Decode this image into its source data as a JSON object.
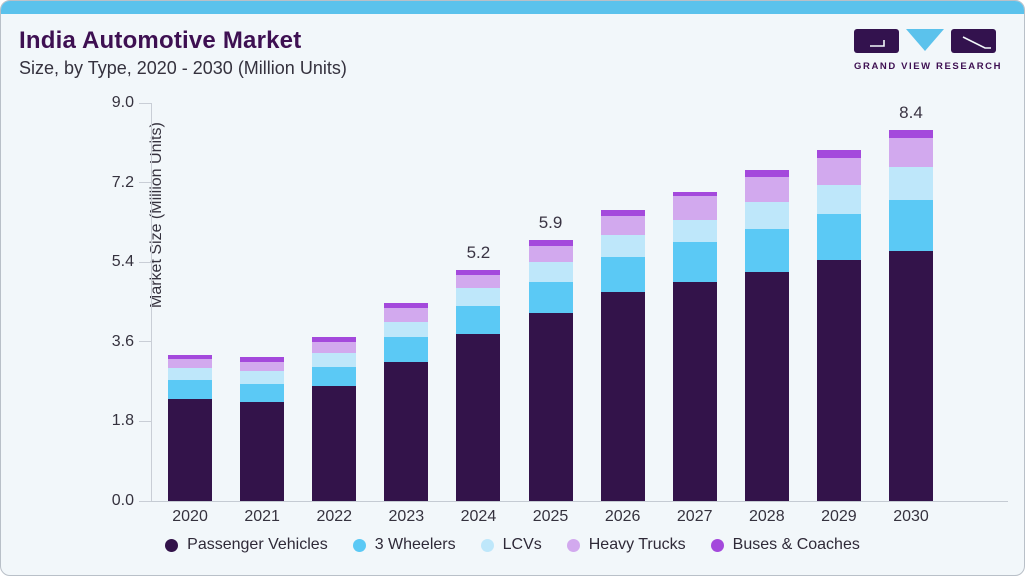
{
  "card": {
    "background": "#f2f7fa",
    "border_color": "#b9c0c8",
    "top_strip_color": "#5bc2ec"
  },
  "header": {
    "title": "India Automotive Market",
    "subtitle": "Size, by Type, 2020 - 2030 (Million Units)",
    "title_color": "#3e1052",
    "subtitle_color": "#3a3443"
  },
  "logo": {
    "text": "GRAND VIEW RESEARCH",
    "dark_color": "#33124e",
    "accent_color": "#5bc2ec",
    "text_color": "#3e1052"
  },
  "chart_data": {
    "type": "bar",
    "stacked": true,
    "title": "India Automotive Market Size, by Type, 2020 - 2030 (Million Units)",
    "ylabel": "Market Size (Million Units)",
    "xlabel": "",
    "ylim": [
      0,
      9
    ],
    "yticks": [
      "9.0",
      "7.2",
      "5.4",
      "3.6",
      "1.8",
      "0.0"
    ],
    "grid": false,
    "legend_position": "bottom",
    "categories": [
      "2020",
      "2021",
      "2022",
      "2023",
      "2024",
      "2025",
      "2026",
      "2027",
      "2028",
      "2029",
      "2030"
    ],
    "series": [
      {
        "name": "Passenger Vehicles",
        "color": "#33134a",
        "values": [
          2.3,
          2.24,
          2.6,
          3.15,
          3.77,
          4.26,
          4.72,
          4.96,
          5.19,
          5.45,
          5.65
        ]
      },
      {
        "name": "3 Wheelers",
        "color": "#5bc9f5",
        "values": [
          0.43,
          0.41,
          0.44,
          0.57,
          0.64,
          0.7,
          0.81,
          0.91,
          0.97,
          1.05,
          1.15
        ]
      },
      {
        "name": "LCVs",
        "color": "#bee7fa",
        "values": [
          0.28,
          0.29,
          0.3,
          0.34,
          0.4,
          0.44,
          0.48,
          0.48,
          0.6,
          0.65,
          0.75
        ]
      },
      {
        "name": "Heavy Trucks",
        "color": "#d2a9ee",
        "values": [
          0.21,
          0.2,
          0.26,
          0.3,
          0.3,
          0.37,
          0.44,
          0.54,
          0.57,
          0.62,
          0.65
        ]
      },
      {
        "name": "Buses & Coaches",
        "color": "#a449dc",
        "values": [
          0.09,
          0.11,
          0.1,
          0.11,
          0.11,
          0.13,
          0.13,
          0.11,
          0.16,
          0.18,
          0.2
        ]
      }
    ],
    "total_labels": [
      "",
      "",
      "",
      "",
      "5.2",
      "5.9",
      "",
      "",
      "",
      "",
      "8.4"
    ],
    "text_colors": {
      "axis": "#35323e",
      "total_label": "#3a3443",
      "legend": "#2f2a38"
    }
  }
}
